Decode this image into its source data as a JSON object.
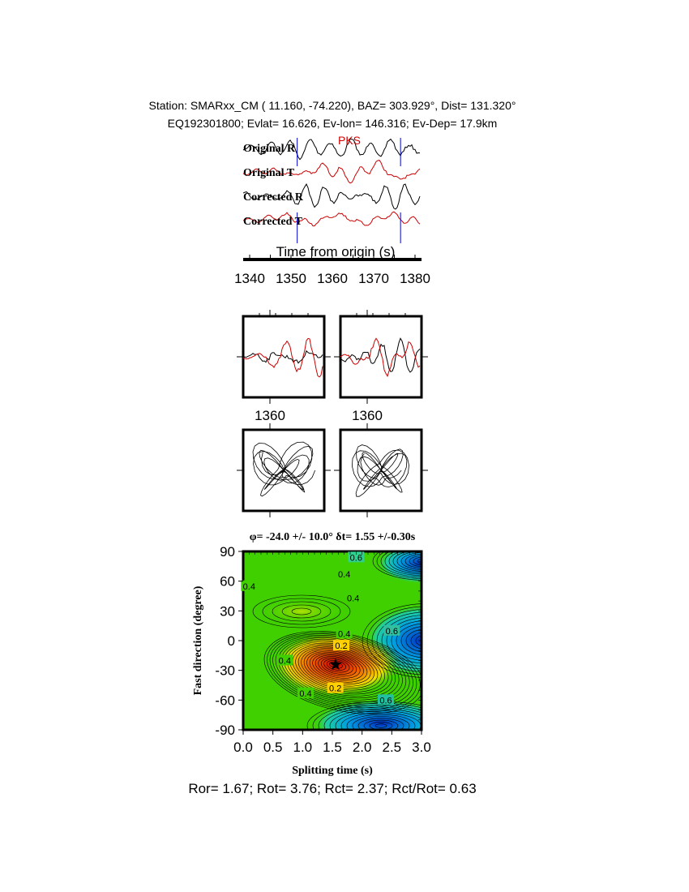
{
  "header": {
    "station_line": "Station: SMARxx_CM (  11.160,  -74.220), BAZ=  303.929°, Dist=  131.320°",
    "event_line": "EQ192301800; Evlat=  16.626, Ev-lon= 146.316; Ev-Dep= 17.9km"
  },
  "traces": {
    "phase_label": "PKS",
    "labels": [
      "Original R",
      "Original T",
      "Corrected R",
      "Corrected T"
    ],
    "colors": {
      "R": "#000000",
      "T": "#cc0000",
      "window": "#0000cc"
    },
    "window_s": [
      1351.5,
      1376.5
    ],
    "axis_label": "Time from origin (s)",
    "ticks": [
      "1340",
      "1350",
      "1360",
      "1370",
      "1380"
    ],
    "xlim": [
      1337,
      1382
    ]
  },
  "small_panels": {
    "tick_label_left": "1360",
    "tick_label_right": "1360"
  },
  "chart_data": {
    "type": "heatmap",
    "title": "φ= -24.0 +/- 10.0° δt= 1.55 +/-0.30s",
    "xlabel": "Splitting time (s)",
    "ylabel": "Fast direction (degree)",
    "xlim": [
      0,
      3
    ],
    "ylim": [
      -90,
      90
    ],
    "xticks": [
      "0.0",
      "0.5",
      "1.0",
      "1.5",
      "2.0",
      "2.5",
      "3.0"
    ],
    "yticks": [
      "90",
      "60",
      "30",
      "0",
      "-30",
      "-60",
      "-90"
    ],
    "best_fit": {
      "dt": 1.55,
      "phi": -24.0
    },
    "contour_labels": [
      "0.6",
      "0.4",
      "0.4",
      "0.4",
      "0.4",
      "0.6",
      "0.4",
      "0.2",
      "0.6",
      "0.2",
      "0.4",
      "0.4",
      "0.6"
    ],
    "colormap": [
      "#cc0000",
      "#ffcc00",
      "#33cc00",
      "#00cccc",
      "#0033cc"
    ]
  },
  "footer": "Ror= 1.67; Rot= 3.76; Rct= 2.37; Rct/Rot= 0.63"
}
